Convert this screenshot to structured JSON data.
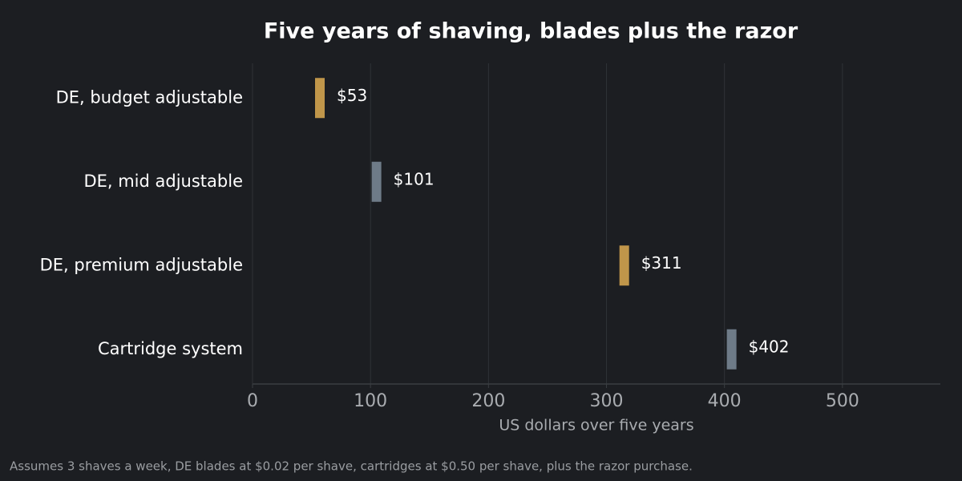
{
  "chart_data": {
    "type": "bar",
    "orientation": "horizontal",
    "title": "Five years of shaving, blades plus the razor",
    "categories": [
      "DE, budget adjustable",
      "DE, mid adjustable",
      "DE, premium adjustable",
      "Cartridge system"
    ],
    "values": [
      53,
      101,
      311,
      402
    ],
    "value_labels": [
      "$53",
      "$101",
      "$311",
      "$402"
    ],
    "colors": [
      "#c0964a",
      "#6e7b88",
      "#c0964a",
      "#6e7b88"
    ],
    "xlim": [
      0,
      583
    ],
    "xticks": [
      0,
      100,
      200,
      300,
      400,
      500
    ],
    "grid": true,
    "x_label": "US dollars over five years",
    "footnote": "Assumes 3 shaves a week, DE blades at $0.02 per shave, cartridges at $0.50 per shave, plus the razor purchase."
  }
}
